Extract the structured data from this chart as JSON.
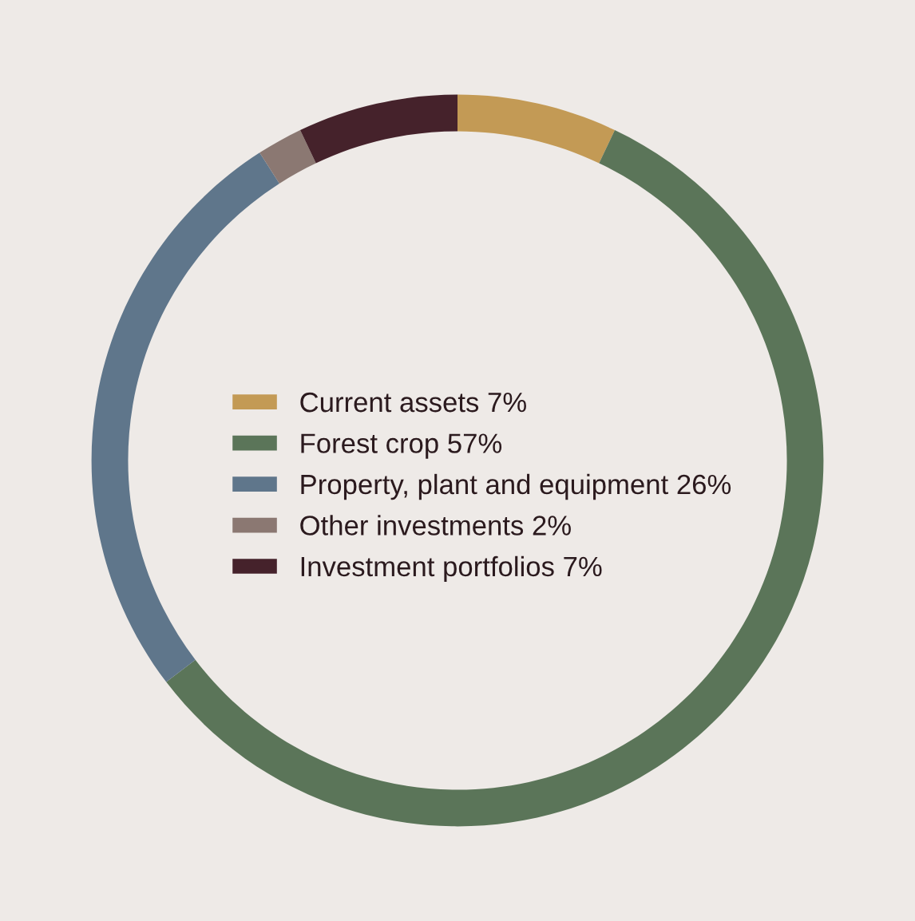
{
  "chart_data": {
    "type": "donut",
    "categories": [
      "Current assets 7%",
      "Forest crop 57%",
      "Property, plant and equipment 26%",
      "Other investments 2%",
      "Investment portfolios 7%"
    ],
    "values": [
      7,
      57,
      26,
      2,
      7
    ],
    "colors": [
      "#c39a55",
      "#5b7559",
      "#5f768b",
      "#8b7872",
      "#45222b"
    ],
    "legend": "center"
  }
}
